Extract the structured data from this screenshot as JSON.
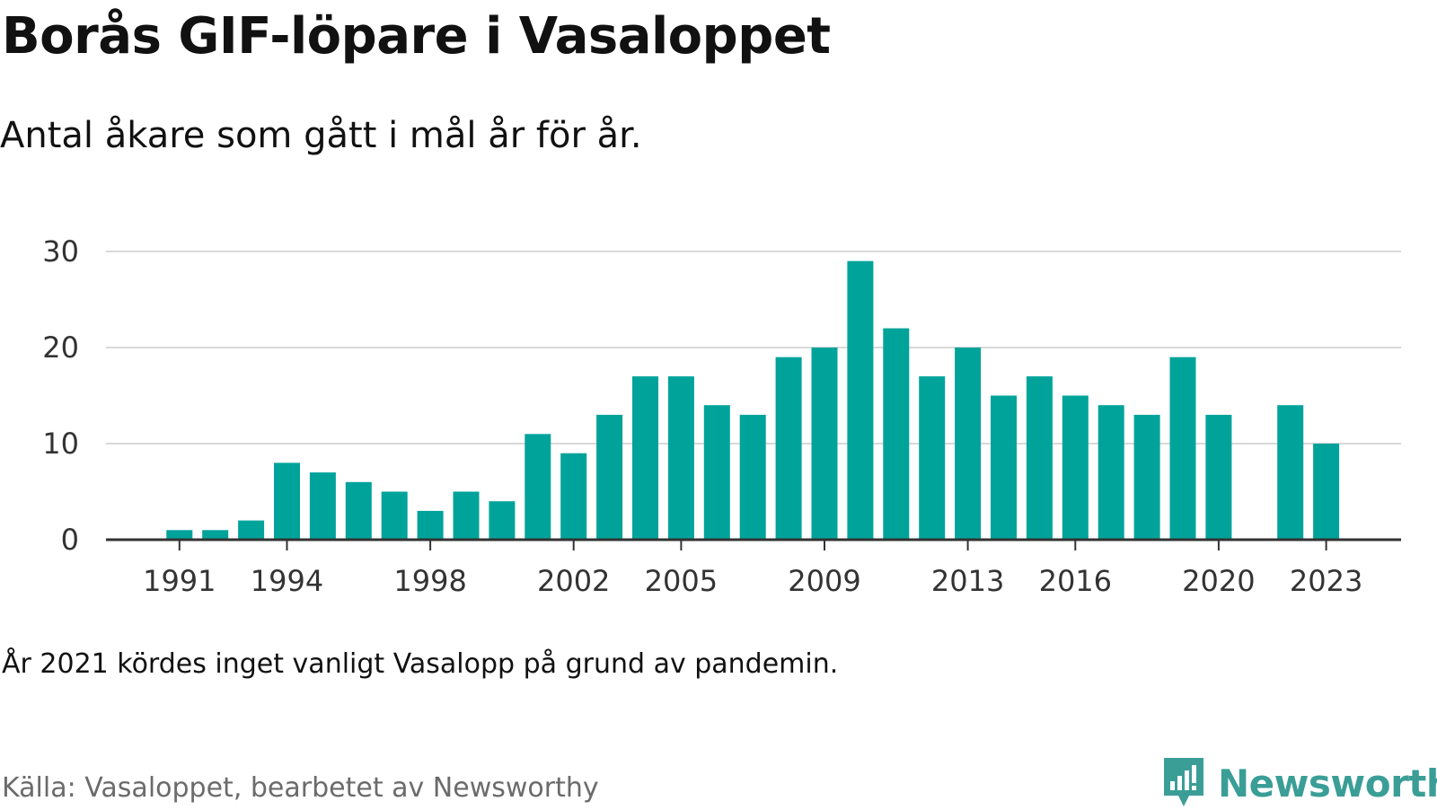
{
  "header": {
    "title": "Borås GIF-löpare i Vasaloppet",
    "subtitle": "Antal åkare som gått i mål år för år."
  },
  "footer": {
    "note": "År 2021 kördes inget vanligt Vasalopp på grund av pandemin.",
    "source": "Källa: Vasaloppet, bearbetet av Newsworthy",
    "brand_name": "Newsworthy",
    "brand_color": "#3a9e97",
    "brand_icon": "newsworthy-logo-icon"
  },
  "chart_data": {
    "type": "bar",
    "title": "Borås GIF-löpare i Vasaloppet",
    "subtitle": "Antal åkare som gått i mål år för år.",
    "xlabel": "",
    "ylabel": "",
    "bar_color": "#00a39a",
    "grid": true,
    "ylim": [
      0,
      30
    ],
    "yticks": [
      0,
      10,
      20,
      30
    ],
    "xticks": [
      1991,
      1994,
      1998,
      2002,
      2005,
      2009,
      2013,
      2016,
      2020,
      2023
    ],
    "categories": [
      1989,
      1990,
      1991,
      1992,
      1993,
      1994,
      1995,
      1996,
      1997,
      1998,
      1999,
      2000,
      2001,
      2002,
      2003,
      2004,
      2005,
      2006,
      2007,
      2008,
      2009,
      2010,
      2011,
      2012,
      2013,
      2014,
      2015,
      2016,
      2017,
      2018,
      2019,
      2020,
      2021,
      2022,
      2023,
      2024
    ],
    "values": [
      0,
      0,
      1,
      1,
      2,
      8,
      7,
      6,
      5,
      3,
      5,
      4,
      11,
      9,
      13,
      17,
      17,
      14,
      13,
      19,
      20,
      29,
      22,
      17,
      20,
      15,
      17,
      15,
      14,
      13,
      19,
      13,
      0,
      14,
      10,
      0
    ]
  }
}
